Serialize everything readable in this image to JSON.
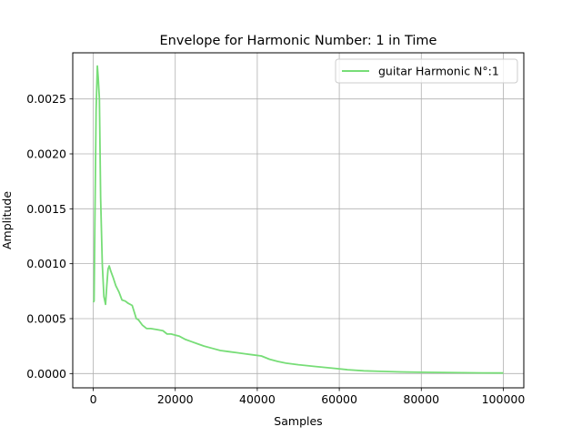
{
  "chart_data": {
    "type": "line",
    "title": "Envelope for Harmonic Number: 1 in Time",
    "xlabel": "Samples",
    "ylabel": "Amplitude",
    "xlim": [
      -5000,
      105000
    ],
    "ylim": [
      -0.00013,
      0.00292
    ],
    "xticks": [
      0,
      20000,
      40000,
      60000,
      80000,
      100000
    ],
    "xtick_labels": [
      "0",
      "20000",
      "40000",
      "60000",
      "80000",
      "100000"
    ],
    "yticks": [
      0.0,
      0.0005,
      0.001,
      0.0015,
      0.002,
      0.0025
    ],
    "ytick_labels": [
      "0.0000",
      "0.0005",
      "0.0010",
      "0.0015",
      "0.0020",
      "0.0025"
    ],
    "grid": true,
    "legend_position": "top-right",
    "series": [
      {
        "name": "guitar Harmonic N°:1",
        "color": "#77dd77",
        "x": [
          0,
          200,
          400,
          700,
          1000,
          1200,
          1500,
          1800,
          2200,
          2600,
          3000,
          3300,
          3600,
          3900,
          4300,
          4800,
          5500,
          6300,
          7000,
          7800,
          8500,
          9500,
          10500,
          11000,
          12000,
          13000,
          14000,
          15500,
          17000,
          18000,
          19000,
          20000,
          21000,
          22500,
          24000,
          25500,
          27000,
          29000,
          31000,
          33000,
          35000,
          37000,
          39000,
          41000,
          43000,
          45000,
          47000,
          50000,
          54000,
          58000,
          62000,
          66000,
          70000,
          75000,
          80000,
          85000,
          90000,
          95000,
          100000
        ],
        "y": [
          0.00065,
          0.00066,
          0.0014,
          0.0024,
          0.0028,
          0.0027,
          0.0025,
          0.0016,
          0.001,
          0.0007,
          0.00063,
          0.0008,
          0.00095,
          0.00098,
          0.00093,
          0.00088,
          0.0008,
          0.00074,
          0.00067,
          0.00066,
          0.00064,
          0.00062,
          0.0005,
          0.00049,
          0.00044,
          0.00041,
          0.00041,
          0.0004,
          0.00039,
          0.00036,
          0.00036,
          0.00035,
          0.00034,
          0.00031,
          0.00029,
          0.00027,
          0.00025,
          0.00023,
          0.00021,
          0.0002,
          0.00019,
          0.00018,
          0.00017,
          0.00016,
          0.00013,
          0.00011,
          9.5e-05,
          8e-05,
          6.5e-05,
          5e-05,
          3.5e-05,
          2.5e-05,
          2e-05,
          1.5e-05,
          1.2e-05,
          1e-05,
          8e-06,
          6e-06,
          5e-06
        ]
      }
    ]
  }
}
